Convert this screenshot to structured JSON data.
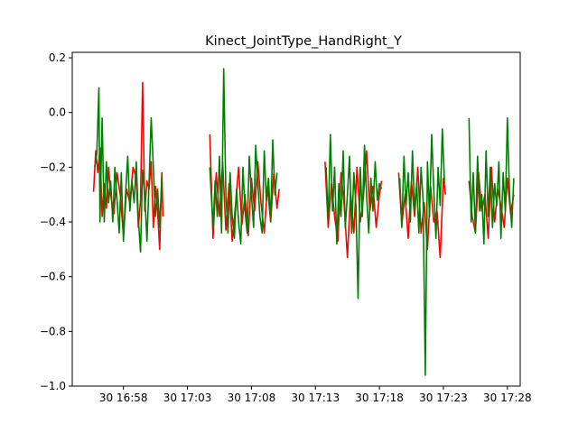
{
  "chart_data": {
    "type": "line",
    "title": "Kinect_JointType_HandRight_Y",
    "xlabel": "",
    "ylabel": "",
    "x_axis_type": "time",
    "x_range": [
      "30 16:54",
      "30 17:29"
    ],
    "ylim": [
      -1.0,
      0.22
    ],
    "grid": false,
    "legend": "none",
    "x_ticks": [
      {
        "t": "30 16:58",
        "label": "30 16:58"
      },
      {
        "t": "30 17:03",
        "label": "30 17:03"
      },
      {
        "t": "30 17:08",
        "label": "30 17:08"
      },
      {
        "t": "30 17:13",
        "label": "30 17:13"
      },
      {
        "t": "30 17:18",
        "label": "30 17:18"
      },
      {
        "t": "30 17:23",
        "label": "30 17:23"
      },
      {
        "t": "30 17:28",
        "label": "30 17:28"
      }
    ],
    "y_ticks": [
      {
        "v": 0.2,
        "label": "0.2"
      },
      {
        "v": 0.0,
        "label": "0.0"
      },
      {
        "v": -0.2,
        "label": "−0.2"
      },
      {
        "v": -0.4,
        "label": "−0.4"
      },
      {
        "v": -0.6,
        "label": "−0.6"
      },
      {
        "v": -0.8,
        "label": "−0.8"
      },
      {
        "v": -1.0,
        "label": "−1.0"
      }
    ],
    "series": [
      {
        "color": "#ff0000",
        "segments": [
          {
            "x": [
              "30 16:55:40",
              "30 16:55:50",
              "30 16:56:00",
              "30 16:56:10",
              "30 16:56:20",
              "30 16:56:30",
              "30 16:56:40",
              "30 16:56:50",
              "30 16:57:00",
              "30 16:57:15",
              "30 16:57:30",
              "30 16:57:45",
              "30 16:58:00",
              "30 16:58:15",
              "30 16:58:30",
              "30 16:58:45",
              "30 16:59:00",
              "30 16:59:10",
              "30 16:59:20",
              "30 16:59:30",
              "30 16:59:40",
              "30 16:59:50",
              "30 17:00:00",
              "30 17:00:10",
              "30 17:00:20",
              "30 17:00:30",
              "30 17:00:40",
              "30 17:00:50",
              "30 17:01:00",
              "30 17:01:05"
            ],
            "y": [
              -0.29,
              -0.14,
              -0.22,
              -0.13,
              -0.38,
              -0.26,
              -0.35,
              -0.2,
              -0.3,
              -0.37,
              -0.22,
              -0.3,
              -0.45,
              -0.28,
              -0.33,
              -0.2,
              -0.24,
              -0.42,
              -0.32,
              0.11,
              -0.36,
              -0.25,
              -0.28,
              -0.18,
              -0.42,
              -0.27,
              -0.36,
              -0.5,
              -0.22,
              -0.38
            ]
          },
          {
            "x": [
              "30 17:04:45",
              "30 17:05:00",
              "30 17:05:15",
              "30 17:05:30",
              "30 17:05:45",
              "30 17:06:00",
              "30 17:06:15",
              "30 17:06:30",
              "30 17:06:45",
              "30 17:07:00",
              "30 17:07:15",
              "30 17:07:30",
              "30 17:07:45",
              "30 17:08:00",
              "30 17:08:15",
              "30 17:08:30",
              "30 17:08:45",
              "30 17:09:00",
              "30 17:09:15",
              "30 17:09:30",
              "30 17:09:45",
              "30 17:10:00",
              "30 17:10:10"
            ],
            "y": [
              -0.08,
              -0.46,
              -0.22,
              -0.38,
              -0.18,
              -0.43,
              -0.26,
              -0.47,
              -0.34,
              -0.2,
              -0.41,
              -0.3,
              -0.45,
              -0.24,
              -0.36,
              -0.18,
              -0.33,
              -0.44,
              -0.27,
              -0.4,
              -0.22,
              -0.35,
              -0.28
            ]
          },
          {
            "x": [
              "30 17:13:45",
              "30 17:14:00",
              "30 17:14:15",
              "30 17:14:30",
              "30 17:14:45",
              "30 17:15:00",
              "30 17:15:15",
              "30 17:15:30",
              "30 17:15:45",
              "30 17:16:00",
              "30 17:16:15",
              "30 17:16:30",
              "30 17:16:45",
              "30 17:17:00",
              "30 17:17:15",
              "30 17:17:30",
              "30 17:17:45",
              "30 17:18:00",
              "30 17:18:10"
            ],
            "y": [
              -0.18,
              -0.42,
              -0.26,
              -0.38,
              -0.47,
              -0.22,
              -0.34,
              -0.53,
              -0.29,
              -0.44,
              -0.2,
              -0.4,
              -0.31,
              -0.14,
              -0.36,
              -0.27,
              -0.42,
              -0.3,
              -0.25
            ]
          },
          {
            "x": [
              "30 17:19:30",
              "30 17:19:45",
              "30 17:20:00",
              "30 17:20:15",
              "30 17:20:30",
              "30 17:20:45",
              "30 17:21:00",
              "30 17:21:15",
              "30 17:21:30",
              "30 17:21:45",
              "30 17:22:00",
              "30 17:22:15",
              "30 17:22:30",
              "30 17:22:45",
              "30 17:23:00",
              "30 17:23:10"
            ],
            "y": [
              -0.22,
              -0.41,
              -0.3,
              -0.46,
              -0.25,
              -0.38,
              -0.2,
              -0.44,
              -0.33,
              -0.5,
              -0.27,
              -0.4,
              -0.36,
              -0.53,
              -0.24,
              -0.3
            ]
          },
          {
            "x": [
              "30 17:25:00",
              "30 17:25:15",
              "30 17:25:30",
              "30 17:25:45",
              "30 17:26:00",
              "30 17:26:15",
              "30 17:26:30",
              "30 17:26:45",
              "30 17:27:00",
              "30 17:27:15",
              "30 17:27:30",
              "30 17:27:45",
              "30 17:28:00",
              "30 17:28:15",
              "30 17:28:30"
            ],
            "y": [
              -0.25,
              -0.38,
              -0.44,
              -0.22,
              -0.36,
              -0.3,
              -0.46,
              -0.2,
              -0.4,
              -0.28,
              -0.34,
              -0.42,
              -0.24,
              -0.37,
              -0.3
            ]
          }
        ]
      },
      {
        "color": "#008000",
        "segments": [
          {
            "x": [
              "30 16:55:45",
              "30 16:55:55",
              "30 16:56:05",
              "30 16:56:10",
              "30 16:56:20",
              "30 16:56:30",
              "30 16:56:40",
              "30 16:56:50",
              "30 16:57:00",
              "30 16:57:10",
              "30 16:57:20",
              "30 16:57:30",
              "30 16:57:40",
              "30 16:57:50",
              "30 16:58:00",
              "30 16:58:10",
              "30 16:58:20",
              "30 16:58:30",
              "30 16:58:40",
              "30 16:58:50",
              "30 16:59:00",
              "30 16:59:10",
              "30 16:59:20",
              "30 16:59:30",
              "30 16:59:40",
              "30 16:59:50",
              "30 17:00:00",
              "30 17:00:10",
              "30 17:00:20",
              "30 17:00:30",
              "30 17:00:40",
              "30 17:00:50",
              "30 17:01:00"
            ],
            "y": [
              -0.2,
              -0.15,
              0.09,
              -0.4,
              -0.02,
              -0.4,
              -0.18,
              -0.33,
              -0.25,
              -0.4,
              -0.2,
              -0.32,
              -0.44,
              -0.22,
              -0.47,
              -0.3,
              -0.16,
              -0.36,
              -0.25,
              -0.33,
              -0.18,
              -0.39,
              -0.51,
              -0.21,
              -0.3,
              -0.47,
              -0.26,
              -0.02,
              -0.2,
              -0.38,
              -0.28,
              -0.42,
              -0.23
            ]
          },
          {
            "x": [
              "30 17:04:45",
              "30 17:05:00",
              "30 17:05:10",
              "30 17:05:20",
              "30 17:05:30",
              "30 17:05:40",
              "30 17:05:50",
              "30 17:06:00",
              "30 17:06:10",
              "30 17:06:20",
              "30 17:06:30",
              "30 17:06:40",
              "30 17:06:50",
              "30 17:07:00",
              "30 17:07:10",
              "30 17:07:20",
              "30 17:07:30",
              "30 17:07:40",
              "30 17:07:50",
              "30 17:08:00",
              "30 17:08:10",
              "30 17:08:20",
              "30 17:08:30",
              "30 17:08:40",
              "30 17:08:50",
              "30 17:09:00",
              "30 17:09:10",
              "30 17:09:20",
              "30 17:09:30",
              "30 17:09:40",
              "30 17:09:50",
              "30 17:10:00"
            ],
            "y": [
              -0.2,
              -0.42,
              -0.25,
              -0.38,
              -0.16,
              -0.44,
              0.16,
              -0.3,
              -0.44,
              -0.22,
              -0.38,
              -0.46,
              -0.28,
              -0.4,
              -0.48,
              -0.2,
              -0.36,
              -0.44,
              -0.16,
              -0.3,
              -0.42,
              -0.12,
              -0.26,
              -0.38,
              -0.44,
              -0.14,
              -0.32,
              -0.24,
              -0.4,
              -0.1,
              -0.3,
              -0.22
            ]
          },
          {
            "x": [
              "30 17:13:50",
              "30 17:14:00",
              "30 17:14:10",
              "30 17:14:20",
              "30 17:14:30",
              "30 17:14:40",
              "30 17:14:50",
              "30 17:15:00",
              "30 17:15:10",
              "30 17:15:20",
              "30 17:15:30",
              "30 17:15:40",
              "30 17:15:50",
              "30 17:16:00",
              "30 17:16:10",
              "30 17:16:20",
              "30 17:16:30",
              "30 17:16:40",
              "30 17:16:50",
              "30 17:17:00",
              "30 17:17:10",
              "30 17:17:20",
              "30 17:17:30",
              "30 17:17:40",
              "30 17:17:50",
              "30 17:18:00",
              "30 17:18:10"
            ],
            "y": [
              -0.2,
              -0.4,
              -0.08,
              -0.36,
              -0.2,
              -0.48,
              -0.26,
              -0.38,
              -0.14,
              -0.42,
              -0.3,
              -0.16,
              -0.44,
              -0.22,
              -0.34,
              -0.68,
              -0.2,
              -0.38,
              -0.12,
              -0.3,
              -0.44,
              -0.24,
              -0.36,
              -0.18,
              -0.32,
              -0.26,
              -0.28
            ]
          },
          {
            "x": [
              "30 17:19:35",
              "30 17:19:45",
              "30 17:19:55",
              "30 17:20:05",
              "30 17:20:15",
              "30 17:20:25",
              "30 17:20:35",
              "30 17:20:45",
              "30 17:20:55",
              "30 17:21:05",
              "30 17:21:15",
              "30 17:21:25",
              "30 17:21:35",
              "30 17:21:45",
              "30 17:21:55",
              "30 17:22:05",
              "30 17:22:15",
              "30 17:22:25",
              "30 17:22:35",
              "30 17:22:45",
              "30 17:22:55",
              "30 17:23:05"
            ],
            "y": [
              -0.24,
              -0.42,
              -0.16,
              -0.34,
              -0.22,
              -0.4,
              -0.14,
              -0.36,
              -0.26,
              -0.44,
              -0.2,
              -0.32,
              -0.96,
              -0.18,
              -0.38,
              -0.08,
              -0.28,
              -0.46,
              -0.2,
              -0.34,
              -0.06,
              -0.26
            ]
          },
          {
            "x": [
              "30 17:25:00",
              "30 17:25:10",
              "30 17:25:20",
              "30 17:25:30",
              "30 17:25:40",
              "30 17:25:50",
              "30 17:26:00",
              "30 17:26:10",
              "30 17:26:20",
              "30 17:26:30",
              "30 17:26:40",
              "30 17:26:50",
              "30 17:27:00",
              "30 17:27:10",
              "30 17:27:20",
              "30 17:27:30",
              "30 17:27:40",
              "30 17:27:50",
              "30 17:28:00",
              "30 17:28:10",
              "30 17:28:20",
              "30 17:28:30"
            ],
            "y": [
              -0.02,
              -0.4,
              -0.22,
              -0.44,
              -0.16,
              -0.36,
              -0.3,
              -0.48,
              -0.14,
              -0.38,
              -0.2,
              -0.42,
              -0.26,
              -0.34,
              -0.18,
              -0.46,
              -0.22,
              -0.36,
              -0.02,
              -0.3,
              -0.42,
              -0.24
            ]
          }
        ]
      }
    ]
  }
}
